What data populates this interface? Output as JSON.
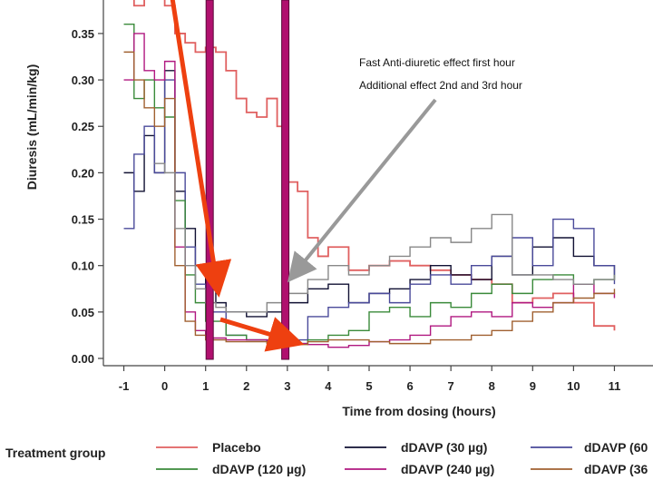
{
  "chart_data": {
    "type": "line",
    "xlabel": "Time from dosing (hours)",
    "ylabel": "Diuresis (mL/min/kg)",
    "xlim": [
      -1.5,
      11.5
    ],
    "ylim": [
      0.0,
      0.39
    ],
    "x_ticks": [
      "-1",
      "0",
      "1",
      "2",
      "3",
      "4",
      "5",
      "6",
      "7",
      "8",
      "9",
      "10",
      "11"
    ],
    "y_ticks": [
      "0.00",
      "0.05",
      "0.10",
      "0.15",
      "0.20",
      "0.25",
      "0.30",
      "0.35"
    ],
    "grid": false,
    "legend_title": "Treatment group",
    "legend_entries": [
      {
        "label": "Placebo",
        "color": "#e06060"
      },
      {
        "label": "dDAVP (30 µg)",
        "color": "#111133"
      },
      {
        "label": "dDAVP (60",
        "color": "#4a4a9a"
      },
      {
        "label": "dDAVP (120 µg)",
        "color": "#3a8a3a"
      },
      {
        "label": "dDAVP (240 µg)",
        "color": "#b01880"
      },
      {
        "label": "dDAVP (36",
        "color": "#a06030"
      }
    ],
    "annotations": [
      {
        "text": "Fast Anti-diuretic effect first hour"
      },
      {
        "text": "Additional effect  2nd and 3rd hour"
      }
    ],
    "vertical_markers": [
      1.1,
      2.95
    ],
    "series": [
      {
        "name": "Placebo",
        "color": "#e06060",
        "points": [
          [
            -1,
            0.39
          ],
          [
            -0.75,
            0.38
          ],
          [
            -0.5,
            0.39
          ],
          [
            0,
            0.38
          ],
          [
            0.25,
            0.35
          ],
          [
            0.5,
            0.34
          ],
          [
            0.75,
            0.33
          ],
          [
            1,
            0.335
          ],
          [
            1.25,
            0.33
          ],
          [
            1.5,
            0.31
          ],
          [
            1.75,
            0.28
          ],
          [
            2,
            0.265
          ],
          [
            2.25,
            0.26
          ],
          [
            2.5,
            0.28
          ],
          [
            2.75,
            0.25
          ],
          [
            3,
            0.19
          ],
          [
            3.25,
            0.18
          ],
          [
            3.5,
            0.13
          ],
          [
            3.75,
            0.11
          ],
          [
            4,
            0.12
          ],
          [
            4.5,
            0.095
          ],
          [
            5,
            0.1
          ],
          [
            5.5,
            0.105
          ],
          [
            6,
            0.1
          ],
          [
            6.5,
            0.095
          ],
          [
            7,
            0.09
          ],
          [
            7.5,
            0.085
          ],
          [
            8,
            0.08
          ],
          [
            8.5,
            0.06
          ],
          [
            9,
            0.065
          ],
          [
            9.5,
            0.07
          ],
          [
            10,
            0.06
          ],
          [
            10.5,
            0.035
          ],
          [
            11,
            0.03
          ]
        ]
      },
      {
        "name": "dDAVP (30 µg)",
        "color": "#111133",
        "points": [
          [
            -1,
            0.2
          ],
          [
            -0.75,
            0.18
          ],
          [
            -0.5,
            0.24
          ],
          [
            -0.25,
            0.2
          ],
          [
            0,
            0.31
          ],
          [
            0.25,
            0.18
          ],
          [
            0.5,
            0.14
          ],
          [
            0.75,
            0.1
          ],
          [
            1,
            0.075
          ],
          [
            1.25,
            0.06
          ],
          [
            1.5,
            0.05
          ],
          [
            2,
            0.045
          ],
          [
            2.5,
            0.05
          ],
          [
            3,
            0.06
          ],
          [
            3.5,
            0.075
          ],
          [
            4,
            0.08
          ],
          [
            4.5,
            0.06
          ],
          [
            5,
            0.07
          ],
          [
            5.5,
            0.075
          ],
          [
            6,
            0.085
          ],
          [
            6.5,
            0.1
          ],
          [
            7,
            0.09
          ],
          [
            7.5,
            0.085
          ],
          [
            8,
            0.11
          ],
          [
            8.5,
            0.09
          ],
          [
            9,
            0.12
          ],
          [
            9.5,
            0.13
          ],
          [
            10,
            0.11
          ],
          [
            10.5,
            0.1
          ],
          [
            11,
            0.09
          ]
        ]
      },
      {
        "name": "dDAVP (60",
        "color": "#4a4a9a",
        "points": [
          [
            -1,
            0.14
          ],
          [
            -0.75,
            0.22
          ],
          [
            -0.5,
            0.25
          ],
          [
            -0.25,
            0.2
          ],
          [
            0,
            0.3
          ],
          [
            0.25,
            0.2
          ],
          [
            0.5,
            0.12
          ],
          [
            0.75,
            0.08
          ],
          [
            1,
            0.05
          ],
          [
            1.5,
            0.025
          ],
          [
            2,
            0.02
          ],
          [
            2.5,
            0.02
          ],
          [
            3,
            0.02
          ],
          [
            3.5,
            0.045
          ],
          [
            4,
            0.055
          ],
          [
            4.5,
            0.06
          ],
          [
            5,
            0.07
          ],
          [
            5.5,
            0.06
          ],
          [
            6,
            0.08
          ],
          [
            6.5,
            0.09
          ],
          [
            7,
            0.08
          ],
          [
            7.5,
            0.1
          ],
          [
            8,
            0.11
          ],
          [
            8.5,
            0.13
          ],
          [
            9,
            0.1
          ],
          [
            9.5,
            0.15
          ],
          [
            10,
            0.14
          ],
          [
            10.5,
            0.1
          ],
          [
            11,
            0.08
          ]
        ]
      },
      {
        "name": "dDAVP (120 µg)",
        "color": "#3a8a3a",
        "points": [
          [
            -1,
            0.36
          ],
          [
            -0.75,
            0.28
          ],
          [
            -0.5,
            0.3
          ],
          [
            -0.25,
            0.27
          ],
          [
            0,
            0.26
          ],
          [
            0.25,
            0.17
          ],
          [
            0.5,
            0.09
          ],
          [
            0.75,
            0.06
          ],
          [
            1,
            0.04
          ],
          [
            1.5,
            0.025
          ],
          [
            2,
            0.02
          ],
          [
            2.5,
            0.018
          ],
          [
            3,
            0.016
          ],
          [
            3.5,
            0.02
          ],
          [
            4,
            0.025
          ],
          [
            4.5,
            0.03
          ],
          [
            5,
            0.05
          ],
          [
            5.5,
            0.055
          ],
          [
            6,
            0.045
          ],
          [
            6.5,
            0.06
          ],
          [
            7,
            0.055
          ],
          [
            7.5,
            0.07
          ],
          [
            8,
            0.08
          ],
          [
            8.5,
            0.07
          ],
          [
            9,
            0.085
          ],
          [
            9.5,
            0.09
          ],
          [
            10,
            0.08
          ],
          [
            10.5,
            0.085
          ],
          [
            11,
            0.09
          ]
        ]
      },
      {
        "name": "dDAVP (240 µg)",
        "color": "#b01880",
        "points": [
          [
            -1,
            0.3
          ],
          [
            -0.75,
            0.35
          ],
          [
            -0.5,
            0.31
          ],
          [
            -0.25,
            0.3
          ],
          [
            0,
            0.32
          ],
          [
            0.25,
            0.12
          ],
          [
            0.5,
            0.05
          ],
          [
            0.75,
            0.03
          ],
          [
            1,
            0.022
          ],
          [
            1.5,
            0.02
          ],
          [
            2,
            0.02
          ],
          [
            2.5,
            0.018
          ],
          [
            3,
            0.016
          ],
          [
            3.5,
            0.015
          ],
          [
            4,
            0.012
          ],
          [
            4.5,
            0.014
          ],
          [
            5,
            0.018
          ],
          [
            5.5,
            0.02
          ],
          [
            6,
            0.025
          ],
          [
            6.5,
            0.035
          ],
          [
            7,
            0.045
          ],
          [
            7.5,
            0.05
          ],
          [
            8,
            0.045
          ],
          [
            8.5,
            0.06
          ],
          [
            9,
            0.055
          ],
          [
            9.5,
            0.06
          ],
          [
            10,
            0.08
          ],
          [
            10.5,
            0.07
          ],
          [
            11,
            0.065
          ]
        ]
      },
      {
        "name": "dDAVP (36",
        "color": "#a06030",
        "points": [
          [
            -1,
            0.33
          ],
          [
            -0.75,
            0.3
          ],
          [
            -0.5,
            0.27
          ],
          [
            -0.25,
            0.25
          ],
          [
            0,
            0.28
          ],
          [
            0.25,
            0.1
          ],
          [
            0.5,
            0.04
          ],
          [
            0.75,
            0.025
          ],
          [
            1,
            0.02
          ],
          [
            1.5,
            0.018
          ],
          [
            2,
            0.018
          ],
          [
            2.5,
            0.016
          ],
          [
            3,
            0.015
          ],
          [
            3.5,
            0.018
          ],
          [
            4,
            0.02
          ],
          [
            4.5,
            0.02
          ],
          [
            5,
            0.018
          ],
          [
            5.5,
            0.016
          ],
          [
            6,
            0.016
          ],
          [
            6.5,
            0.02
          ],
          [
            7,
            0.02
          ],
          [
            7.5,
            0.025
          ],
          [
            8,
            0.03
          ],
          [
            8.5,
            0.04
          ],
          [
            9,
            0.05
          ],
          [
            9.5,
            0.06
          ],
          [
            10,
            0.065
          ],
          [
            10.5,
            0.07
          ],
          [
            11,
            0.075
          ]
        ]
      },
      {
        "name": "",
        "color": "#888888",
        "points": [
          [
            -0.25,
            0.21
          ],
          [
            0,
            0.2
          ],
          [
            0.25,
            0.14
          ],
          [
            0.5,
            0.1
          ],
          [
            0.75,
            0.075
          ],
          [
            1,
            0.06
          ],
          [
            1.25,
            0.055
          ],
          [
            1.5,
            0.05
          ],
          [
            2,
            0.05
          ],
          [
            2.5,
            0.06
          ],
          [
            3,
            0.07
          ],
          [
            3.5,
            0.085
          ],
          [
            4,
            0.1
          ],
          [
            4.5,
            0.09
          ],
          [
            5,
            0.1
          ],
          [
            5.5,
            0.11
          ],
          [
            6,
            0.12
          ],
          [
            6.5,
            0.13
          ],
          [
            7,
            0.125
          ],
          [
            7.5,
            0.14
          ],
          [
            8,
            0.155
          ],
          [
            8.5,
            0.09
          ],
          [
            9,
            0.09
          ],
          [
            9.5,
            0.085
          ],
          [
            10,
            0.08
          ],
          [
            10.5,
            0.085
          ],
          [
            11,
            0.09
          ]
        ]
      }
    ]
  }
}
